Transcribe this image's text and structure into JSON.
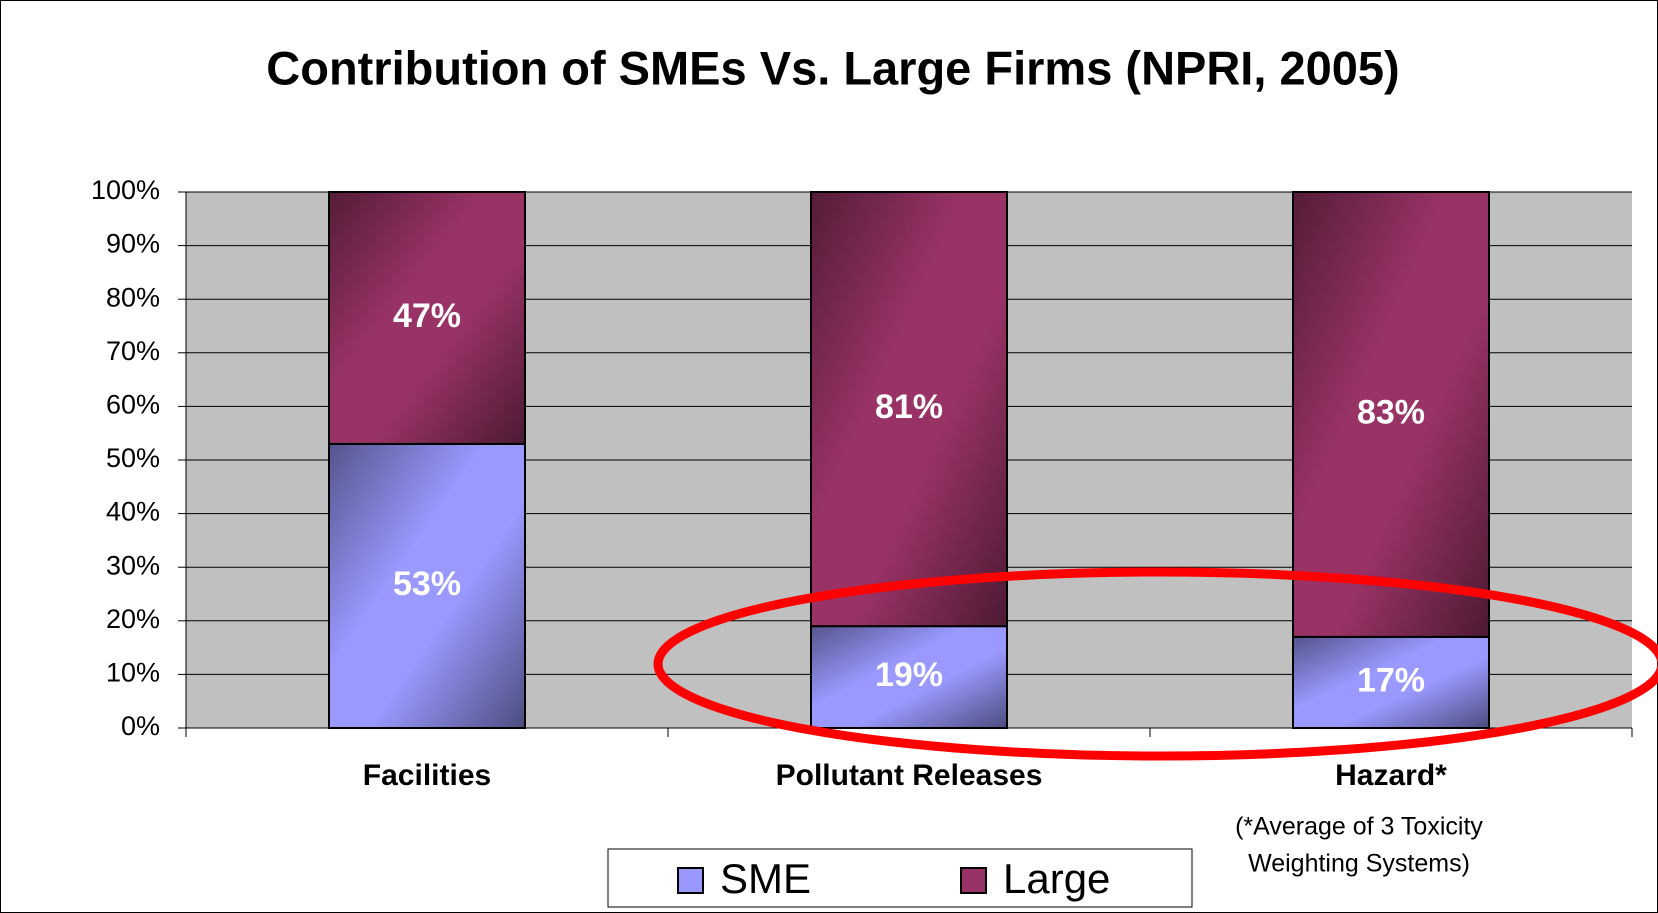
{
  "chart_data": {
    "type": "stacked_bar",
    "title": "Contribution of SMEs Vs. Large Firms (NPRI, 2005)",
    "categories": [
      "Facilities",
      "Pollutant Releases",
      "Hazard*"
    ],
    "series": [
      {
        "name": "SME",
        "color": "#9999ff",
        "values": [
          53,
          19,
          17
        ],
        "value_labels": [
          "53%",
          "19%",
          "17%"
        ]
      },
      {
        "name": "Large",
        "color": "#993366",
        "values": [
          47,
          81,
          83
        ],
        "value_labels": [
          "47%",
          "81%",
          "83%"
        ]
      }
    ],
    "ylim": [
      0,
      100
    ],
    "yticks": [
      {
        "value": 0,
        "label": "0%"
      },
      {
        "value": 10,
        "label": "10%"
      },
      {
        "value": 20,
        "label": "20%"
      },
      {
        "value": 30,
        "label": "30%"
      },
      {
        "value": 40,
        "label": "40%"
      },
      {
        "value": 50,
        "label": "50%"
      },
      {
        "value": 60,
        "label": "60%"
      },
      {
        "value": 70,
        "label": "70%"
      },
      {
        "value": 80,
        "label": "80%"
      },
      {
        "value": 90,
        "label": "90%"
      },
      {
        "value": 100,
        "label": "100%"
      }
    ],
    "grid": true,
    "legend": "bottom",
    "annotation_lines": [
      "(*Average of 3 Toxicity",
      "Weighting Systems)"
    ]
  }
}
